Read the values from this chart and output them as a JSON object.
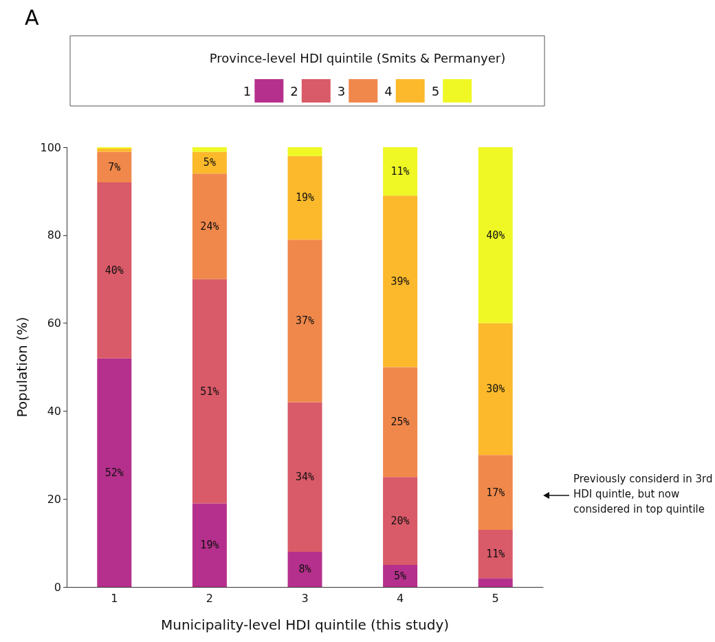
{
  "chart_data": {
    "type": "bar",
    "stacked": true,
    "xlabel": "Municipality-level HDI quintile (this study)",
    "ylabel": "Population (%)",
    "legend_title": "Province-level HDI quintile (Smits & Permanyer)",
    "legend": "top",
    "categories": [
      "1",
      "2",
      "3",
      "4",
      "5"
    ],
    "series": [
      {
        "name": "1",
        "color": "#b5308c",
        "values": [
          52,
          19,
          8,
          5,
          2
        ],
        "value_labels": [
          "52%",
          "19%",
          "8%",
          "5%",
          null
        ]
      },
      {
        "name": "2",
        "color": "#d95a68",
        "values": [
          40,
          51,
          34,
          20,
          11
        ],
        "value_labels": [
          "40%",
          "51%",
          "34%",
          "20%",
          "11%"
        ]
      },
      {
        "name": "3",
        "color": "#f0884b",
        "values": [
          7,
          24,
          37,
          25,
          17
        ],
        "value_labels": [
          "7%",
          "24%",
          "37%",
          "25%",
          "17%"
        ]
      },
      {
        "name": "4",
        "color": "#fbb92b",
        "values": [
          0.7,
          5,
          19,
          39,
          30
        ],
        "value_labels": [
          null,
          "5%",
          "19%",
          "39%",
          "30%"
        ]
      },
      {
        "name": "5",
        "color": "#eff825",
        "values": [
          0.3,
          1,
          2,
          11,
          40
        ],
        "value_labels": [
          null,
          null,
          null,
          "11%",
          "40%"
        ]
      }
    ],
    "ylim": [
      0,
      100
    ],
    "yticks": [
      0,
      20,
      40,
      60,
      80,
      100
    ],
    "grid": false,
    "annotations": [
      "A",
      "Previously considerd in 3rd HDI quintle, but now considered in top quintile"
    ]
  }
}
